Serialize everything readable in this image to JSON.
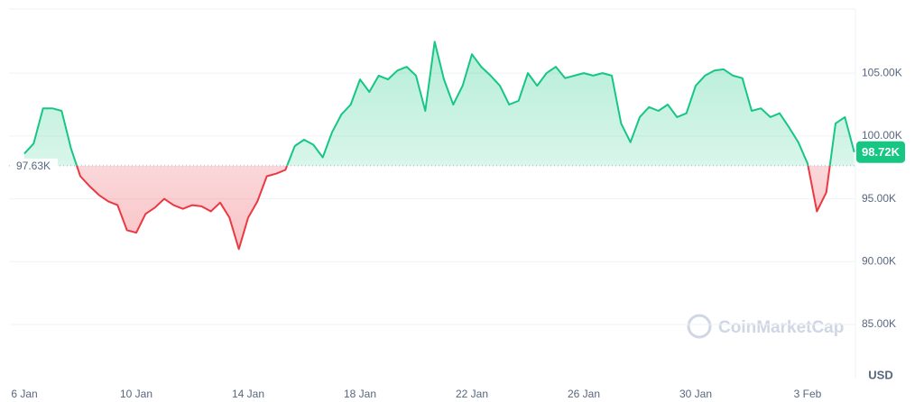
{
  "chart_data": {
    "type": "line",
    "categories": [
      "6 Jan",
      null,
      null,
      null,
      null,
      null,
      null,
      null,
      null,
      null,
      null,
      null,
      "10 Jan",
      null,
      null,
      null,
      null,
      null,
      null,
      null,
      null,
      null,
      null,
      null,
      "14 Jan",
      null,
      null,
      null,
      null,
      null,
      null,
      null,
      null,
      null,
      null,
      null,
      "18 Jan",
      null,
      null,
      null,
      null,
      null,
      null,
      null,
      null,
      null,
      null,
      null,
      "22 Jan",
      null,
      null,
      null,
      null,
      null,
      null,
      null,
      null,
      null,
      null,
      null,
      "26 Jan",
      null,
      null,
      null,
      null,
      null,
      null,
      null,
      null,
      null,
      null,
      null,
      "30 Jan",
      null,
      null,
      null,
      null,
      null,
      null,
      null,
      null,
      null,
      null,
      null,
      "3 Feb",
      null,
      null,
      null,
      null,
      null
    ],
    "values": [
      98.6,
      99.4,
      102.2,
      102.2,
      102.0,
      99.0,
      96.8,
      96.0,
      95.3,
      94.8,
      94.5,
      92.5,
      92.3,
      93.8,
      94.3,
      95.0,
      94.5,
      94.2,
      94.5,
      94.4,
      94.0,
      94.7,
      93.5,
      91.0,
      93.5,
      94.8,
      96.8,
      97.0,
      97.3,
      99.2,
      99.7,
      99.3,
      98.3,
      100.3,
      101.7,
      102.5,
      104.5,
      103.5,
      104.8,
      104.5,
      105.2,
      105.5,
      104.8,
      102.0,
      107.5,
      104.5,
      102.5,
      104.0,
      106.5,
      105.5,
      104.8,
      104.0,
      102.5,
      102.8,
      105.0,
      104.0,
      105.0,
      105.5,
      104.6,
      104.8,
      105.0,
      104.8,
      105.0,
      104.8,
      101.0,
      99.5,
      101.5,
      102.3,
      102.0,
      102.5,
      101.5,
      101.8,
      104.0,
      104.8,
      105.2,
      105.3,
      104.8,
      104.6,
      102.0,
      102.2,
      101.5,
      101.8,
      100.7,
      99.5,
      97.8,
      94.0,
      95.5,
      101.0,
      101.5,
      98.72
    ],
    "up_color": "#16c784",
    "down_color": "#ea3943",
    "baseline": {
      "value": 97.63,
      "label": "97.63K"
    },
    "last_price": {
      "value": 98.72,
      "label": "98.72K"
    },
    "ylim": [
      80.7,
      110.1
    ],
    "yticks": [
      {
        "value": 85,
        "label": "85.00K"
      },
      {
        "value": 90,
        "label": "90.00K"
      },
      {
        "value": 95,
        "label": "95.00K"
      },
      {
        "value": 100,
        "label": "100.00K"
      },
      {
        "value": 105,
        "label": "105.00K"
      }
    ],
    "grid": true,
    "currency": "USD",
    "watermark": "CoinMarketCap"
  }
}
